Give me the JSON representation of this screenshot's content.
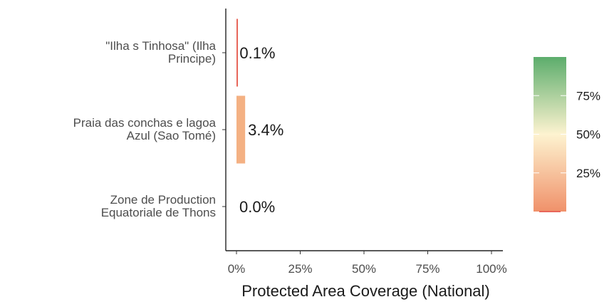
{
  "chart_data": {
    "type": "bar",
    "orientation": "horizontal",
    "categories": [
      [
        "\"Ilha s Tinhosa\" (Ilha",
        "Principe)"
      ],
      [
        "Praia das conchas e lagoa",
        "Azul (Sao Tomé)"
      ],
      [
        "Zone de Production",
        "Equatoriale de Thons"
      ]
    ],
    "values": [
      0.1,
      3.4,
      0.0
    ],
    "data_labels": [
      "0.1%",
      "3.4%",
      "0.0%"
    ],
    "bar_colors": [
      "#e8665a",
      "#f4b183",
      "#f08070"
    ],
    "xlabel": "Protected Area Coverage (National)",
    "xlim": [
      0,
      100
    ],
    "x_ticks": [
      0,
      25,
      50,
      75,
      100
    ],
    "x_tick_labels": [
      "0%",
      "25%",
      "50%",
      "75%",
      "100%"
    ],
    "grid": false,
    "legend": {
      "placement": "right",
      "type": "colorbar",
      "range": [
        0,
        100
      ],
      "ticks": [
        25,
        50,
        75
      ],
      "tick_labels": [
        "25%",
        "50%",
        "75%"
      ],
      "colors": [
        "#f08c6a",
        "#fdf3d0",
        "#5cad6c"
      ]
    }
  }
}
